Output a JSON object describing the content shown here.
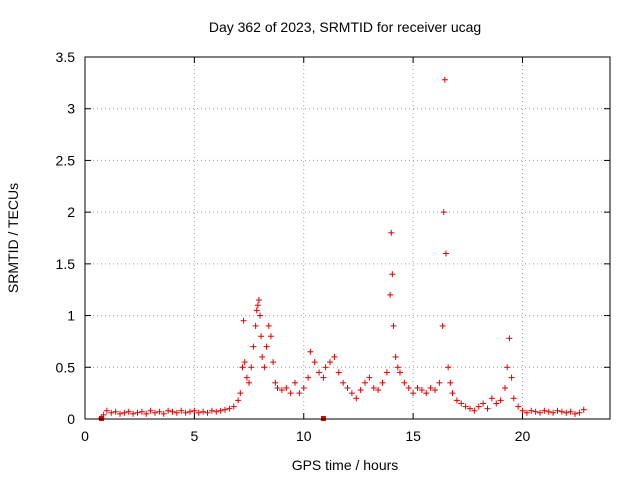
{
  "chart_data": {
    "type": "scatter",
    "title": "Day 362 of 2023, SRMTID for receiver ucag",
    "xlabel": "GPS time / hours",
    "ylabel": "SRMTID / TECUs",
    "xlim": [
      0,
      24
    ],
    "ylim": [
      0,
      3.5
    ],
    "xticks": [
      0,
      5,
      10,
      15,
      20
    ],
    "xtick_labels": [
      "0",
      "5",
      "10",
      "15",
      "20"
    ],
    "yticks": [
      0,
      0.5,
      1,
      1.5,
      2,
      2.5,
      3,
      3.5
    ],
    "ytick_labels": [
      "0",
      "0.5",
      "1",
      "1.5",
      "2",
      "2.5",
      "3",
      "3.5"
    ],
    "grid": true,
    "marker": "+",
    "color": "#e00000",
    "series": [
      {
        "name": "ucag",
        "x": [
          0.75,
          0.85,
          1.0,
          1.2,
          1.4,
          1.6,
          1.8,
          2.0,
          2.2,
          2.4,
          2.6,
          2.8,
          3.0,
          3.2,
          3.4,
          3.6,
          3.8,
          4.0,
          4.2,
          4.4,
          4.6,
          4.8,
          5.0,
          5.2,
          5.4,
          5.6,
          5.8,
          6.0,
          6.2,
          6.4,
          6.6,
          6.8,
          7.0,
          7.1,
          7.2,
          7.25,
          7.3,
          7.4,
          7.5,
          7.6,
          7.7,
          7.8,
          7.85,
          7.9,
          7.95,
          8.0,
          8.05,
          8.1,
          8.2,
          8.3,
          8.4,
          8.5,
          8.6,
          8.7,
          8.8,
          9.0,
          9.2,
          9.4,
          9.6,
          9.8,
          10.0,
          10.2,
          10.3,
          10.5,
          10.7,
          10.9,
          11.0,
          11.2,
          11.4,
          11.6,
          11.8,
          12.0,
          12.2,
          12.4,
          12.6,
          12.8,
          13.0,
          13.2,
          13.4,
          13.6,
          13.8,
          13.95,
          14.0,
          14.05,
          14.1,
          14.2,
          14.3,
          14.4,
          14.6,
          14.8,
          15.0,
          15.2,
          15.4,
          15.6,
          15.8,
          16.0,
          16.2,
          16.35,
          16.4,
          16.45,
          16.5,
          16.6,
          16.7,
          16.8,
          17.0,
          17.2,
          17.4,
          17.6,
          17.8,
          18.0,
          18.2,
          18.4,
          18.6,
          18.8,
          19.0,
          19.2,
          19.3,
          19.4,
          19.5,
          19.6,
          19.8,
          20.0,
          20.2,
          20.4,
          20.6,
          20.8,
          21.0,
          21.2,
          21.4,
          21.6,
          21.8,
          22.0,
          22.2,
          22.4,
          22.6,
          22.8
        ],
        "y": [
          0.01,
          0.04,
          0.08,
          0.06,
          0.07,
          0.05,
          0.06,
          0.07,
          0.05,
          0.06,
          0.07,
          0.05,
          0.08,
          0.06,
          0.07,
          0.05,
          0.08,
          0.07,
          0.06,
          0.08,
          0.06,
          0.07,
          0.08,
          0.06,
          0.07,
          0.06,
          0.08,
          0.07,
          0.08,
          0.09,
          0.1,
          0.12,
          0.18,
          0.25,
          0.5,
          0.95,
          0.55,
          0.4,
          0.35,
          0.5,
          0.7,
          0.9,
          1.05,
          1.1,
          1.15,
          1.0,
          0.8,
          0.6,
          0.5,
          0.7,
          0.9,
          0.8,
          0.55,
          0.35,
          0.3,
          0.28,
          0.3,
          0.25,
          0.35,
          0.25,
          0.3,
          0.4,
          0.65,
          0.55,
          0.45,
          0.4,
          0.5,
          0.55,
          0.6,
          0.45,
          0.35,
          0.3,
          0.25,
          0.2,
          0.28,
          0.35,
          0.4,
          0.3,
          0.28,
          0.35,
          0.45,
          1.2,
          1.8,
          1.4,
          0.9,
          0.6,
          0.5,
          0.45,
          0.35,
          0.3,
          0.25,
          0.3,
          0.28,
          0.25,
          0.3,
          0.28,
          0.35,
          0.9,
          2.0,
          3.28,
          1.6,
          0.5,
          0.35,
          0.25,
          0.18,
          0.15,
          0.12,
          0.1,
          0.08,
          0.12,
          0.15,
          0.1,
          0.2,
          0.15,
          0.18,
          0.3,
          0.5,
          0.78,
          0.4,
          0.2,
          0.12,
          0.08,
          0.06,
          0.08,
          0.07,
          0.06,
          0.08,
          0.07,
          0.06,
          0.08,
          0.07,
          0.06,
          0.07,
          0.05,
          0.06,
          0.09
        ]
      }
    ],
    "outliers": {
      "x": [
        0.75,
        10.9
      ],
      "y": [
        0.0,
        0.0
      ]
    }
  }
}
